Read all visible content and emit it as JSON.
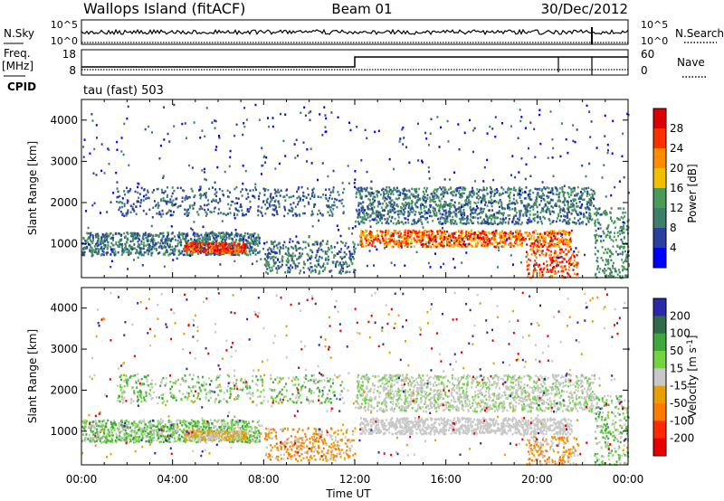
{
  "header": {
    "site": "Wallops Island (fitACF)",
    "beam": "Beam 01",
    "date": "30/Dec/2012"
  },
  "panels": {
    "nsky_label": "N.Sky",
    "nsky_ticks": [
      "10^5",
      "10^0"
    ],
    "nsearch_label": "N.Search",
    "nsearch_ticks": [
      "10^5",
      "10^0"
    ],
    "freq_label": "Freq.",
    "freq_unit": "[MHz]",
    "freq_ticks": [
      "18",
      "8"
    ],
    "nave_label": "Nave",
    "nave_ticks": [
      "60",
      "0"
    ],
    "cpid_label": "CPID",
    "cpid_text": "tau (fast) 503"
  },
  "colors": {
    "power": [
      "#0000ff",
      "#2a3fa0",
      "#3d7f6a",
      "#4c9a58",
      "#f0c000",
      "#ff8c00",
      "#ff3000",
      "#dd0000"
    ],
    "velocity": [
      "#2a2aa8",
      "#2f6a4a",
      "#3fa83a",
      "#73d343",
      "#c8c8c8",
      "#e8a000",
      "#ff7a00",
      "#ff2a00",
      "#e80000"
    ]
  },
  "chart_data": [
    {
      "type": "heatmap",
      "quantity": "power",
      "xlabel": "",
      "ylabel": "Slant Range [km]",
      "x_ticks": [
        "00:00",
        "04:00",
        "08:00",
        "12:00",
        "16:00",
        "20:00",
        "00:00"
      ],
      "x_range_hours": [
        0,
        24
      ],
      "y_ticks": [
        1000,
        2000,
        3000,
        4000
      ],
      "y_range_km": [
        180,
        4500
      ],
      "colorbar_label": "Power [dB]",
      "colorbar_ticks": [
        4,
        8,
        12,
        16,
        20,
        24,
        28
      ],
      "colorbar_range": [
        0,
        30
      ]
    },
    {
      "type": "heatmap",
      "quantity": "velocity",
      "xlabel": "Time UT",
      "ylabel": "Slant Range [km]",
      "x_ticks": [
        "00:00",
        "04:00",
        "08:00",
        "12:00",
        "16:00",
        "20:00",
        "00:00"
      ],
      "x_range_hours": [
        0,
        24
      ],
      "y_ticks": [
        1000,
        2000,
        3000,
        4000
      ],
      "y_range_km": [
        180,
        4500
      ],
      "colorbar_label": "Velocity [m s^-1]",
      "colorbar_ticks": [
        200,
        100,
        50,
        15,
        -15,
        -50,
        -100,
        -200
      ]
    }
  ]
}
